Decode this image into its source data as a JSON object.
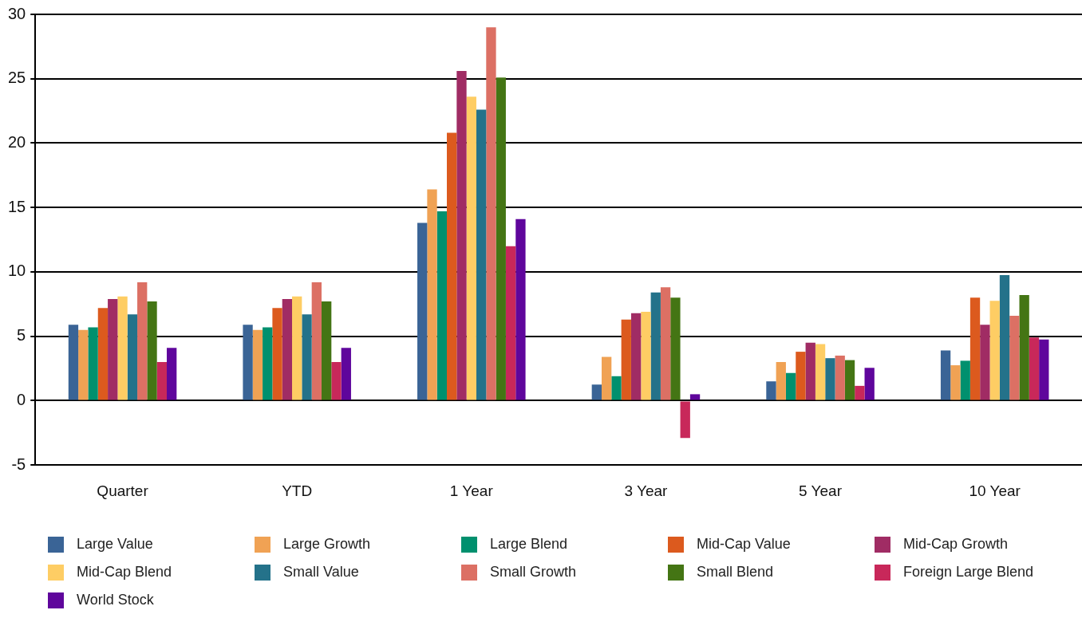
{
  "chart_data": {
    "type": "bar",
    "categories": [
      "Quarter",
      "YTD",
      "1 Year",
      "3 Year",
      "5 Year",
      "10 Year"
    ],
    "series": [
      {
        "name": "Large Value",
        "color": "#3a6496",
        "values": [
          5.9,
          5.9,
          13.8,
          1.25,
          1.5,
          3.9
        ]
      },
      {
        "name": "Large Growth",
        "color": "#f0a254",
        "values": [
          5.5,
          5.5,
          16.4,
          3.4,
          3.0,
          2.75
        ]
      },
      {
        "name": "Large Blend",
        "color": "#00906e",
        "values": [
          5.7,
          5.7,
          14.7,
          1.9,
          2.15,
          3.1
        ]
      },
      {
        "name": "Mid-Cap Value",
        "color": "#dc5a1e",
        "values": [
          7.2,
          7.2,
          20.8,
          6.3,
          3.8,
          8.0
        ]
      },
      {
        "name": "Mid-Cap Growth",
        "color": "#a02c64",
        "values": [
          7.9,
          7.9,
          25.6,
          6.8,
          4.5,
          5.9
        ]
      },
      {
        "name": "Mid-Cap Blend",
        "color": "#fecd64",
        "values": [
          8.1,
          8.1,
          23.6,
          6.9,
          4.4,
          7.75
        ]
      },
      {
        "name": "Small Value",
        "color": "#24728a",
        "values": [
          6.7,
          6.7,
          22.6,
          8.4,
          3.3,
          9.75
        ]
      },
      {
        "name": "Small Growth",
        "color": "#dc7064",
        "values": [
          9.2,
          9.2,
          29.0,
          8.8,
          3.5,
          6.6
        ]
      },
      {
        "name": "Small Blend",
        "color": "#447514",
        "values": [
          7.7,
          7.7,
          25.1,
          8.0,
          3.15,
          8.2
        ]
      },
      {
        "name": "Foreign Large Blend",
        "color": "#c8285a",
        "values": [
          3.0,
          3.0,
          12.0,
          -2.9,
          1.15,
          4.9
        ]
      },
      {
        "name": "World Stock",
        "color": "#5f069c",
        "values": [
          4.1,
          4.1,
          14.1,
          0.5,
          2.55,
          4.75
        ]
      }
    ],
    "ylim": [
      -5,
      30
    ],
    "yticks": [
      -5,
      0,
      5,
      10,
      15,
      20,
      25,
      30
    ],
    "grid": "y",
    "legend": "bottom"
  }
}
